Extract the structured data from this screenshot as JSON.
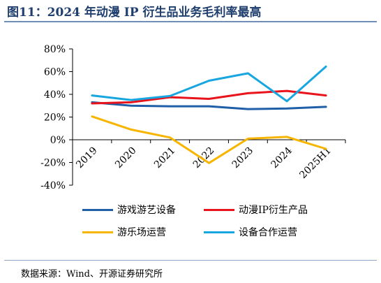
{
  "figure": {
    "title": "图11：2024 年动漫 IP 衍生品业务毛利率最高",
    "source": "数据来源：Wind、开源证券研究所"
  },
  "chart_data": {
    "type": "line",
    "title": "",
    "xlabel": "",
    "ylabel": "",
    "categories": [
      "2019",
      "2020",
      "2021",
      "2022",
      "2023",
      "2024",
      "2025H1"
    ],
    "yticks": [
      "80%",
      "60%",
      "40%",
      "20%",
      "0%",
      "-20%",
      "-40%"
    ],
    "ylim": [
      -40,
      80
    ],
    "grid": false,
    "legend_position": "bottom",
    "series": [
      {
        "name": "游戏游艺设备",
        "color": "#1f5fa8",
        "values": [
          33,
          30,
          29.5,
          29.5,
          27,
          27.5,
          29
        ]
      },
      {
        "name": "动漫IP衍生产品",
        "color": "#e8131b",
        "values": [
          32,
          33,
          37.5,
          36,
          41,
          43,
          39
        ]
      },
      {
        "name": "游乐场运营",
        "color": "#f7b500",
        "values": [
          20.5,
          9,
          2,
          -20.5,
          1,
          2.5,
          -8
        ]
      },
      {
        "name": "设备合作运营",
        "color": "#17a6e0",
        "values": [
          39,
          35,
          38.5,
          52,
          58.5,
          34,
          64.5
        ]
      }
    ]
  }
}
